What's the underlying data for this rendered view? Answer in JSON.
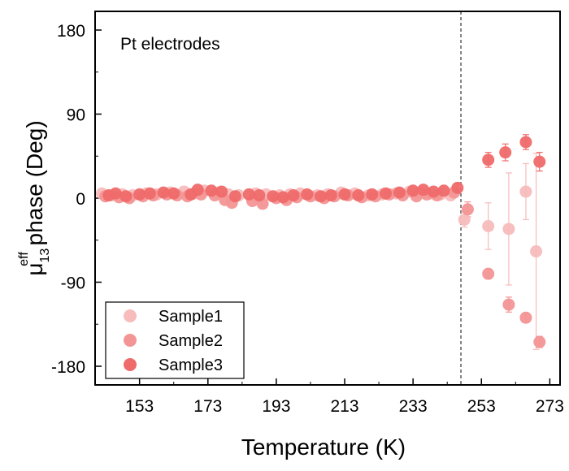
{
  "chart_data": {
    "type": "scatter",
    "title": "",
    "xlabel": "Temperature (K)",
    "ylabel_main": "μ",
    "ylabel_sup": "eff",
    "ylabel_sub": "13",
    "ylabel_rest": " phase (Deg)",
    "xlim": [
      140,
      276
    ],
    "ylim": [
      -200,
      200
    ],
    "xticks": [
      153,
      173,
      193,
      213,
      233,
      253,
      273
    ],
    "yticks": [
      180,
      90,
      0,
      -90,
      -180
    ],
    "annotation": "Pt electrodes",
    "vline_x": 247,
    "legend_position": "bottom-left",
    "series": [
      {
        "name": "Sample1",
        "color": "#f7bcbc",
        "points": [
          {
            "x": 142,
            "y": 5
          },
          {
            "x": 145,
            "y": 3
          },
          {
            "x": 148,
            "y": 4
          },
          {
            "x": 151,
            "y": 3
          },
          {
            "x": 155,
            "y": 5
          },
          {
            "x": 158,
            "y": 4
          },
          {
            "x": 162,
            "y": 6
          },
          {
            "x": 166,
            "y": 7
          },
          {
            "x": 169,
            "y": 5
          },
          {
            "x": 172,
            "y": 8
          },
          {
            "x": 176,
            "y": 6
          },
          {
            "x": 179,
            "y": 4
          },
          {
            "x": 182,
            "y": 3
          },
          {
            "x": 187,
            "y": 5
          },
          {
            "x": 190,
            "y": 4
          },
          {
            "x": 194,
            "y": 3
          },
          {
            "x": 197,
            "y": 4
          },
          {
            "x": 200,
            "y": 5
          },
          {
            "x": 205,
            "y": 3
          },
          {
            "x": 208,
            "y": 4
          },
          {
            "x": 212,
            "y": 6
          },
          {
            "x": 216,
            "y": 5
          },
          {
            "x": 220,
            "y": 3
          },
          {
            "x": 224,
            "y": 4
          },
          {
            "x": 228,
            "y": 5
          },
          {
            "x": 232,
            "y": 7
          },
          {
            "x": 235,
            "y": 6
          },
          {
            "x": 238,
            "y": 5
          },
          {
            "x": 241,
            "y": 4
          },
          {
            "x": 244,
            "y": 3
          },
          {
            "x": 248,
            "y": -23,
            "err": 8
          },
          {
            "x": 255,
            "y": -30,
            "err": 25
          },
          {
            "x": 261,
            "y": -33,
            "err": 60
          },
          {
            "x": 266,
            "y": 7,
            "err": 30
          },
          {
            "x": 269,
            "y": -57,
            "err": 105
          }
        ]
      },
      {
        "name": "Sample2",
        "color": "#f39595",
        "points": [
          {
            "x": 143,
            "y": 2
          },
          {
            "x": 147,
            "y": 1
          },
          {
            "x": 150,
            "y": 0
          },
          {
            "x": 154,
            "y": 2
          },
          {
            "x": 157,
            "y": 3
          },
          {
            "x": 161,
            "y": 4
          },
          {
            "x": 164,
            "y": 3
          },
          {
            "x": 167,
            "y": 2
          },
          {
            "x": 171,
            "y": 4
          },
          {
            "x": 175,
            "y": 3
          },
          {
            "x": 178,
            "y": -2
          },
          {
            "x": 180,
            "y": -5
          },
          {
            "x": 186,
            "y": -3
          },
          {
            "x": 189,
            "y": -6
          },
          {
            "x": 193,
            "y": 0
          },
          {
            "x": 196,
            "y": -2
          },
          {
            "x": 199,
            "y": 1
          },
          {
            "x": 203,
            "y": 2
          },
          {
            "x": 207,
            "y": 0
          },
          {
            "x": 210,
            "y": 2
          },
          {
            "x": 214,
            "y": 3
          },
          {
            "x": 218,
            "y": 1
          },
          {
            "x": 222,
            "y": 2
          },
          {
            "x": 226,
            "y": 4
          },
          {
            "x": 230,
            "y": 3
          },
          {
            "x": 234,
            "y": 2
          },
          {
            "x": 237,
            "y": 4
          },
          {
            "x": 240,
            "y": 3
          },
          {
            "x": 245,
            "y": 6
          },
          {
            "x": 249,
            "y": -12,
            "err": 8
          },
          {
            "x": 255,
            "y": -81,
            "err": 5
          },
          {
            "x": 261,
            "y": -114,
            "err": 8
          },
          {
            "x": 266,
            "y": -128,
            "err": 5
          },
          {
            "x": 270,
            "y": -154,
            "err": 6
          }
        ]
      },
      {
        "name": "Sample3",
        "color": "#ef6a6a",
        "points": [
          {
            "x": 144,
            "y": 3
          },
          {
            "x": 146,
            "y": 5
          },
          {
            "x": 149,
            "y": 2
          },
          {
            "x": 153,
            "y": 4
          },
          {
            "x": 156,
            "y": 5
          },
          {
            "x": 160,
            "y": 6
          },
          {
            "x": 163,
            "y": 5
          },
          {
            "x": 168,
            "y": 4
          },
          {
            "x": 170,
            "y": 9
          },
          {
            "x": 174,
            "y": 8
          },
          {
            "x": 177,
            "y": 7
          },
          {
            "x": 181,
            "y": 2
          },
          {
            "x": 185,
            "y": 4
          },
          {
            "x": 188,
            "y": 3
          },
          {
            "x": 192,
            "y": 2
          },
          {
            "x": 195,
            "y": 1
          },
          {
            "x": 198,
            "y": 3
          },
          {
            "x": 202,
            "y": 4
          },
          {
            "x": 206,
            "y": 2
          },
          {
            "x": 209,
            "y": 3
          },
          {
            "x": 213,
            "y": 4
          },
          {
            "x": 217,
            "y": 3
          },
          {
            "x": 221,
            "y": 4
          },
          {
            "x": 225,
            "y": 5
          },
          {
            "x": 229,
            "y": 6
          },
          {
            "x": 233,
            "y": 8
          },
          {
            "x": 236,
            "y": 9
          },
          {
            "x": 239,
            "y": 7
          },
          {
            "x": 242,
            "y": 8
          },
          {
            "x": 246,
            "y": 11,
            "err": 5
          },
          {
            "x": 255,
            "y": 41,
            "err": 8
          },
          {
            "x": 260,
            "y": 49,
            "err": 9
          },
          {
            "x": 266,
            "y": 60,
            "err": 8
          },
          {
            "x": 270,
            "y": 39,
            "err": 10
          }
        ]
      }
    ]
  }
}
